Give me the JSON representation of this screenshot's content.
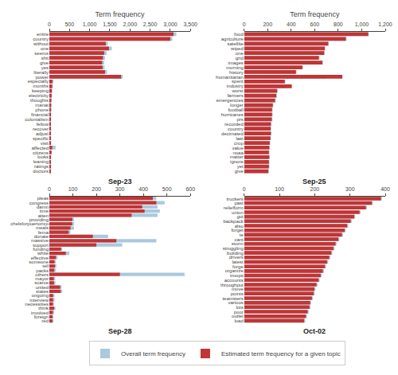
{
  "chart_data": [
    {
      "type": "bar",
      "orientation": "horizontal",
      "stacked": false,
      "grid": false,
      "legend": "bottom",
      "title": "Sep-23",
      "xlabel": "Term frequency",
      "categories": [
        "entire",
        "country",
        "without",
        "one",
        "seems",
        "shit",
        "give",
        "yes",
        "literally",
        "power",
        "especially",
        "months",
        "keeping",
        "electricity",
        "thoughts",
        "manat",
        "phone",
        "financial",
        "colonialism",
        "fellow",
        "recover",
        "adjust",
        "specific",
        "visit",
        "affected",
        "citizens",
        "looks",
        "leaning",
        "ratings",
        "doctors"
      ],
      "series": [
        {
          "name": "Overall term frequency",
          "color": "#aac9dd",
          "values": [
            3150,
            3050,
            1450,
            1550,
            1420,
            1380,
            1360,
            1370,
            1430,
            1820,
            100,
            90,
            75,
            68,
            60,
            55,
            52,
            47,
            44,
            40,
            38,
            36,
            35,
            34,
            155,
            65,
            44,
            36,
            36,
            30
          ]
        },
        {
          "name": "Estimated term frequency for a given topic",
          "color": "#c03535",
          "values": [
            3080,
            3000,
            1400,
            1480,
            1360,
            1330,
            1310,
            1320,
            1380,
            1780,
            75,
            68,
            60,
            55,
            47,
            43,
            41,
            38,
            35,
            32,
            30,
            28,
            27,
            26,
            70,
            52,
            36,
            28,
            28,
            24
          ]
        }
      ],
      "xlim": [
        0,
        3500
      ],
      "xticks": [
        0,
        500,
        {
          "value": 1000,
          "label": "1,000"
        },
        {
          "value": 1500,
          "label": "1,500"
        },
        {
          "value": 2000,
          "label": "2,000"
        },
        {
          "value": 2500,
          "label": "2,500"
        },
        {
          "value": 3000,
          "label": "3,000"
        },
        {
          "value": 3500,
          "label": "3,500"
        }
      ]
    },
    {
      "type": "bar",
      "orientation": "horizontal",
      "stacked": false,
      "grid": false,
      "title": "Sep-25",
      "xlabel": "Term frequency",
      "categories": [
        "food",
        "agriculture",
        "satellite",
        "wiped",
        "one",
        "grid",
        "images",
        "morning",
        "history",
        "humanitarian",
        "spent",
        "industry",
        "worst",
        "farmers",
        "emergencies",
        "longer",
        "football",
        "hurricanes",
        "prs",
        "recorded",
        "country",
        "decimated",
        "last",
        "crop",
        "value",
        "noaa",
        "matter",
        "ignore",
        "yet",
        "give"
      ],
      "series": [
        {
          "name": "Overall term frequency",
          "color": "#aac9dd",
          "values": [
            1060,
            870,
            720,
            690,
            685,
            640,
            670,
            500,
            445,
            695,
            350,
            360,
            285,
            278,
            268,
            248,
            242,
            242,
            240,
            232,
            230,
            232,
            228,
            222,
            218,
            215,
            218,
            215,
            215,
            210
          ]
        },
        {
          "name": "Estimated term frequency for a given topic",
          "color": "#c03535",
          "values": [
            1055,
            865,
            715,
            685,
            680,
            635,
            665,
            495,
            440,
            835,
            345,
            405,
            280,
            273,
            263,
            243,
            237,
            237,
            235,
            227,
            225,
            227,
            223,
            217,
            213,
            210,
            213,
            210,
            210,
            205
          ]
        }
      ],
      "xlim": [
        0,
        1200
      ],
      "xticks": [
        0,
        200,
        400,
        600,
        800,
        {
          "value": 1000,
          "label": "1,000"
        },
        {
          "value": 1200,
          "label": "1,200"
        }
      ]
    },
    {
      "type": "bar",
      "orientation": "horizontal",
      "stacked": false,
      "grid": false,
      "title": "Sep-28",
      "categories": [
        "pleas",
        "congress",
        "damn",
        "time",
        "atten",
        "providing",
        "chelsforpuertorico",
        "meals",
        "fema",
        "donate",
        "massive",
        "support",
        "funding",
        "white",
        "effective",
        "someone",
        "tell",
        "packs",
        "others",
        "mayor",
        "scarce",
        "united",
        "states",
        "ongoing",
        "interview",
        "necessities",
        "think",
        "involved",
        "foreign",
        "red"
      ],
      "series": [
        {
          "name": "Overall term frequency",
          "color": "#aac9dd",
          "values": [
            455,
            490,
            460,
            470,
            460,
            105,
            105,
            105,
            90,
            250,
            455,
            310,
            55,
            85,
            35,
            28,
            30,
            27,
            575,
            25,
            26,
            52,
            55,
            22,
            22,
            20,
            26,
            20,
            18,
            18
          ]
        },
        {
          "name": "Estimated term frequency for a given topic",
          "color": "#c03535",
          "values": [
            440,
            455,
            395,
            405,
            350,
            98,
            97,
            90,
            82,
            185,
            285,
            200,
            50,
            70,
            28,
            22,
            24,
            21,
            300,
            19,
            20,
            46,
            48,
            16,
            16,
            15,
            20,
            15,
            13,
            13
          ]
        }
      ],
      "xlim": [
        0,
        600
      ],
      "xticks": [
        0,
        100,
        200,
        300,
        400,
        500,
        600
      ]
    },
    {
      "type": "bar",
      "orientation": "horizontal",
      "stacked": false,
      "grid": false,
      "title": "Oct-02",
      "categories": [
        "truckers",
        "past",
        "reliefform",
        "union",
        "got",
        "backpack",
        "also",
        "forget",
        "te",
        "cant",
        "storm",
        "struggling",
        "building",
        "drivers",
        "latest",
        "forge",
        "organize",
        "troops",
        "accounts",
        "throughput",
        "move",
        "points",
        "teamsters",
        "various",
        "lots",
        "poor",
        "outlet",
        "load"
      ],
      "series": [
        {
          "name": "Overall term frequency",
          "color": "#aac9dd",
          "values": [
            390,
            365,
            348,
            330,
            315,
            305,
            295,
            288,
            280,
            270,
            262,
            256,
            250,
            244,
            238,
            232,
            226,
            220,
            214,
            208,
            202,
            200,
            195,
            190,
            188,
            183,
            178,
            173
          ]
        },
        {
          "name": "Estimated term frequency for a given topic",
          "color": "#c03535",
          "values": [
            388,
            362,
            345,
            327,
            312,
            302,
            292,
            285,
            277,
            267,
            259,
            253,
            247,
            241,
            235,
            229,
            223,
            217,
            211,
            205,
            199,
            197,
            192,
            187,
            185,
            180,
            175,
            170
          ]
        }
      ],
      "xlim": [
        0,
        400
      ],
      "xticks": [
        0,
        100,
        200,
        300,
        400
      ]
    }
  ]
}
